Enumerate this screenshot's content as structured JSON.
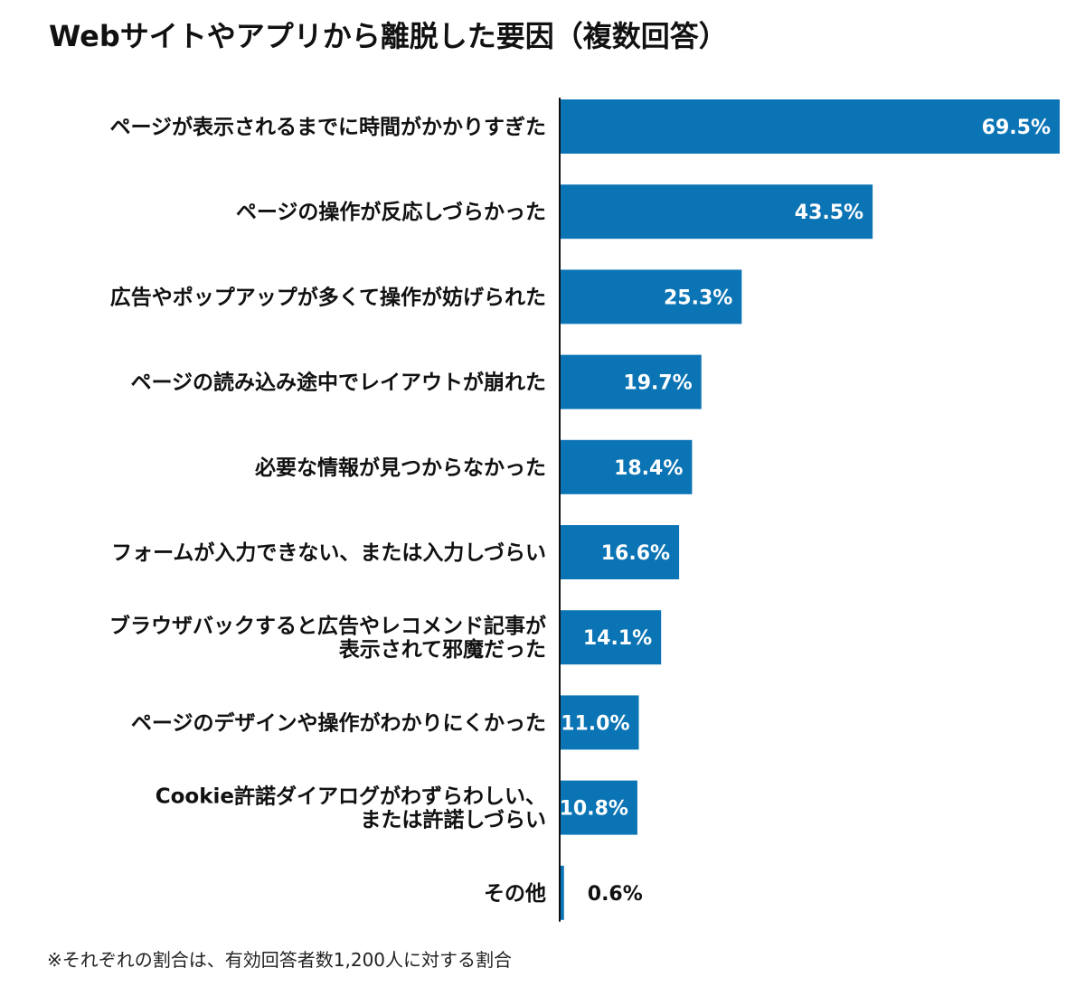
{
  "header": {
    "title": "Webサイトやアプリから離脱した要因（複数回答）"
  },
  "footnote": "※それぞれの割合は、有効回答者数1,200人に対する割合",
  "colors": {
    "bar": "#0b74b5",
    "label_text": "#111111",
    "value_text_inside": "#ffffff",
    "value_text_outside": "#111111",
    "axis": "#111111"
  },
  "chart_data": {
    "type": "bar",
    "orientation": "horizontal",
    "title": "Webサイトやアプリから離脱した要因（複数回答）",
    "unit": "%",
    "xlim": [
      0,
      70
    ],
    "grid": false,
    "legend": "none",
    "categories": [
      [
        "ページが表示されるまでに時間がかかりすぎた"
      ],
      [
        "ページの操作が反応しづらかった"
      ],
      [
        "広告やポップアップが多くて操作が妨げられた"
      ],
      [
        "ページの読み込み途中でレイアウトが崩れた"
      ],
      [
        "必要な情報が見つからなかった"
      ],
      [
        "フォームが入力できない、または入力しづらい"
      ],
      [
        "ブラウザバックすると広告やレコメンド記事が",
        "表示されて邪魔だった"
      ],
      [
        "ページのデザインや操作がわかりにくかった"
      ],
      [
        "Cookie許諾ダイアログがわずらわしい、",
        "または許諾しづらい"
      ],
      [
        "その他"
      ]
    ],
    "values": [
      69.5,
      43.5,
      25.3,
      19.7,
      18.4,
      16.6,
      14.1,
      11.0,
      10.8,
      0.6
    ],
    "value_labels": [
      "69.5%",
      "43.5%",
      "25.3%",
      "19.7%",
      "18.4%",
      "16.6%",
      "14.1%",
      "11.0%",
      "10.8%",
      "0.6%"
    ]
  }
}
